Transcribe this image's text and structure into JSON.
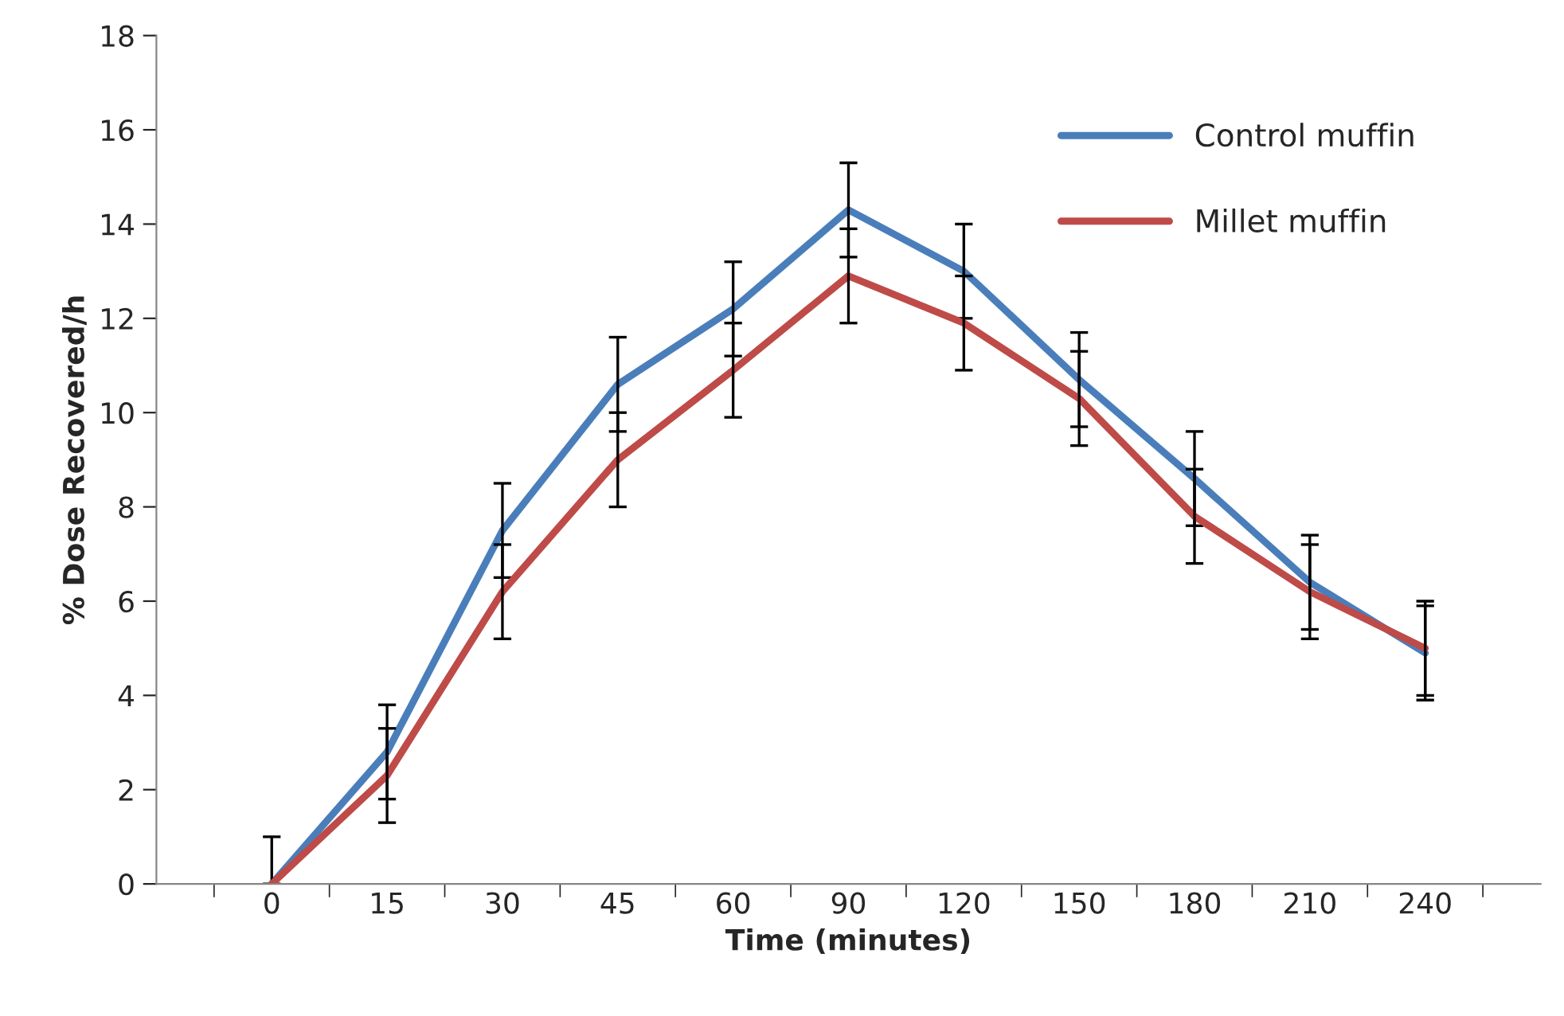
{
  "chart_data": {
    "type": "line",
    "xlabel": "Time (minutes)",
    "ylabel": "% Dose Recovered/h",
    "categories": [
      "0",
      "15",
      "30",
      "45",
      "60",
      "90",
      "120",
      "150",
      "180",
      "210",
      "240"
    ],
    "series": [
      {
        "name": "Control muffin",
        "color": "#4a7ebb",
        "values": [
          0,
          2.8,
          7.5,
          10.6,
          12.2,
          14.3,
          13.0,
          10.7,
          8.6,
          6.4,
          4.9
        ],
        "errors": [
          [
            0,
            1
          ],
          1,
          1,
          1,
          1,
          1,
          1,
          1,
          1,
          1,
          1
        ]
      },
      {
        "name": "Millet muffin",
        "color": "#be4b48",
        "values": [
          0,
          2.3,
          6.2,
          9.0,
          10.9,
          12.9,
          11.9,
          10.3,
          7.8,
          6.2,
          5.0
        ],
        "errors": [
          null,
          1,
          1,
          1,
          1,
          1,
          1,
          1,
          1,
          1,
          1
        ]
      }
    ],
    "ylim": [
      0,
      18
    ],
    "yticks": [
      0,
      2,
      4,
      6,
      8,
      10,
      12,
      14,
      16,
      18
    ],
    "grid": false,
    "legend": "top right",
    "marker": "none",
    "line_style": "solid"
  }
}
